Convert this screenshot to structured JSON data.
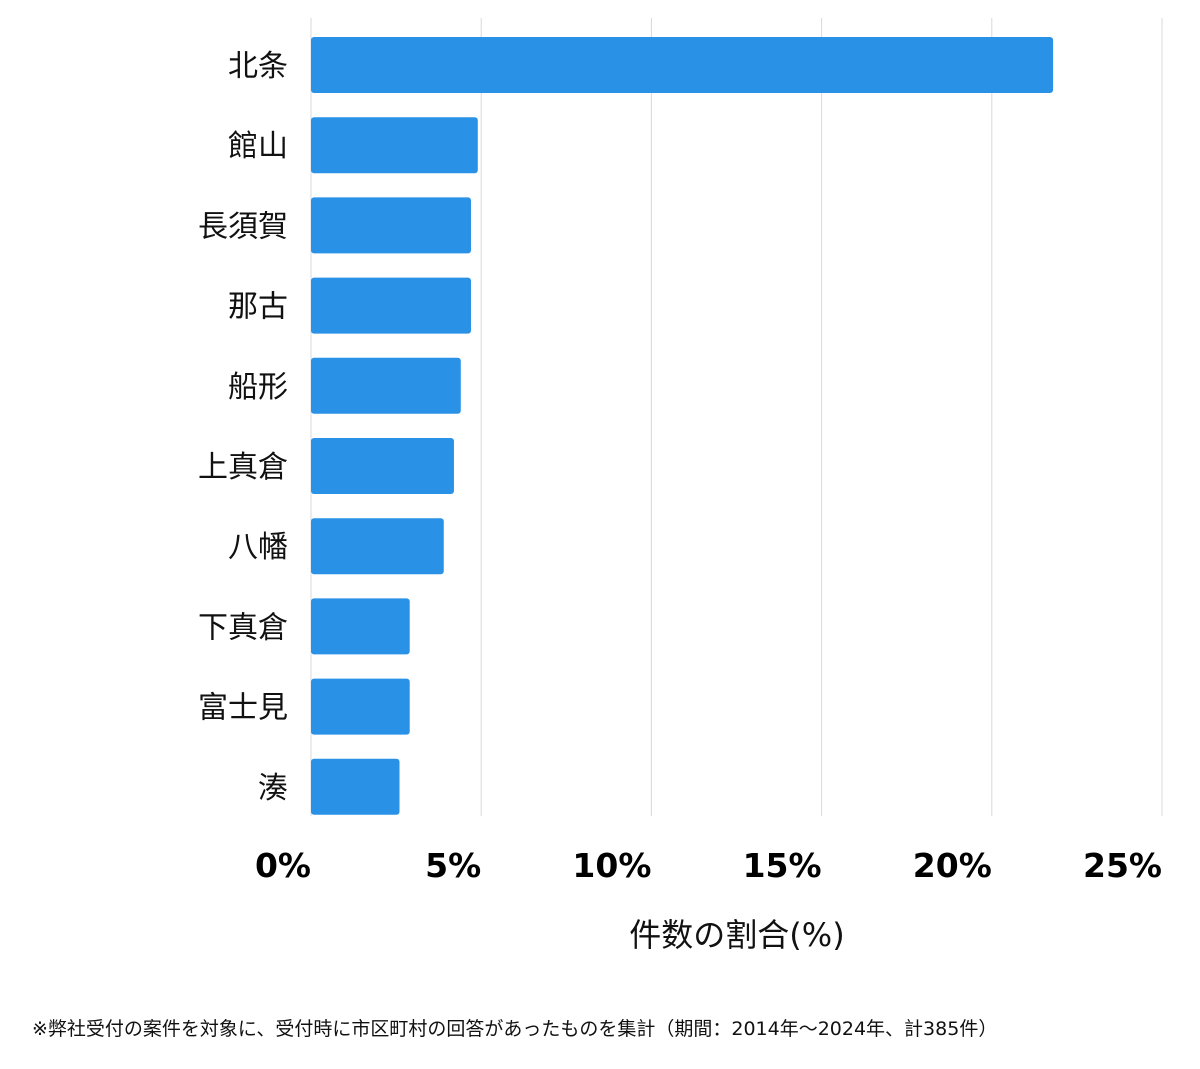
{
  "chart_data": {
    "type": "bar",
    "orientation": "horizontal",
    "categories": [
      "北条",
      "館山",
      "長須賀",
      "那古",
      "船形",
      "上真倉",
      "八幡",
      "下真倉",
      "富士見",
      "湊"
    ],
    "values": [
      21.8,
      4.9,
      4.7,
      4.7,
      4.4,
      4.2,
      3.9,
      2.9,
      2.9,
      2.6
    ],
    "xlim": [
      0,
      25
    ],
    "xticks": [
      0,
      5,
      10,
      15,
      20,
      25
    ],
    "xtick_labels": [
      "0%",
      "5%",
      "10%",
      "15%",
      "20%",
      "25%"
    ],
    "xlabel": "件数の割合(%)",
    "ylabel": "",
    "title": "",
    "grid": "vertical",
    "legend": "none",
    "bar_color": "#2992e6",
    "grid_color": "#d9d9d9"
  },
  "footnote": "※弊社受付の案件を対象に、受付時に市区町村の回答があったものを集計（期間：2014年～2024年、計385件）"
}
